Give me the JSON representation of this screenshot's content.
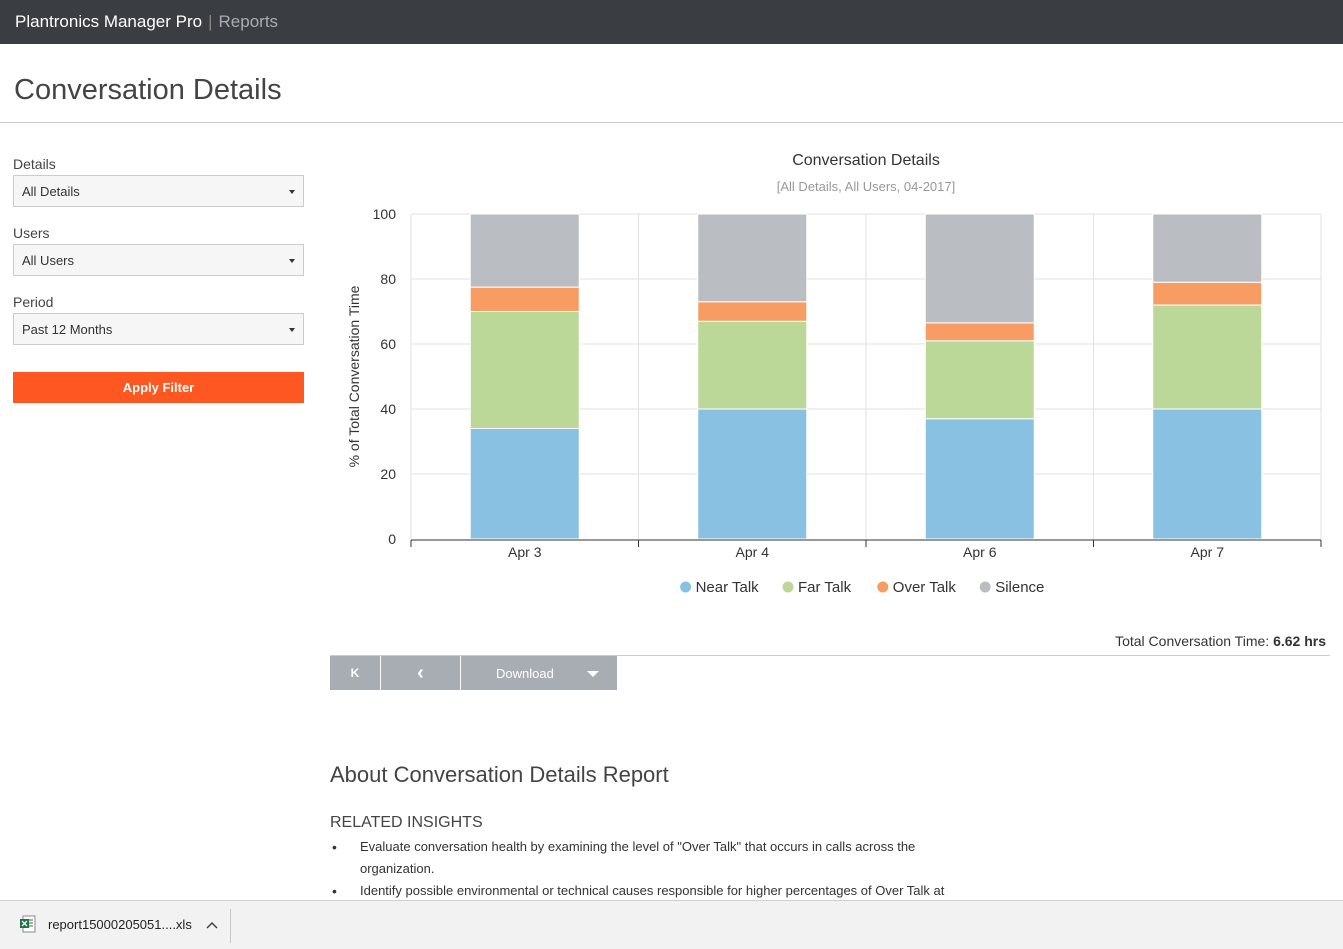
{
  "topbar": {
    "app_title": "Plantronics Manager Pro",
    "separator": "|",
    "section": "Reports"
  },
  "page": {
    "title": "Conversation Details"
  },
  "filters": {
    "details_label": "Details",
    "details_value": "All Details",
    "users_label": "Users",
    "users_value": "All Users",
    "period_label": "Period",
    "period_value": "Past 12 Months",
    "apply_label": "Apply Filter"
  },
  "chart_data": {
    "type": "bar",
    "stacked": true,
    "title": "Conversation Details",
    "subtitle": "[All Details, All Users, 04-2017]",
    "xlabel": "",
    "ylabel": "% of Total Conversation Time",
    "ylim": [
      0,
      100
    ],
    "yticks": [
      0,
      20,
      40,
      60,
      80,
      100
    ],
    "categories": [
      "Apr 3",
      "Apr 4",
      "Apr 6",
      "Apr 7"
    ],
    "series": [
      {
        "name": "Near Talk",
        "color": "#89c1e3",
        "values": [
          34,
          40,
          37,
          40
        ]
      },
      {
        "name": "Far Talk",
        "color": "#bcd898",
        "values": [
          36,
          27,
          24,
          32
        ]
      },
      {
        "name": "Over Talk",
        "color": "#f79c62",
        "values": [
          7.5,
          6,
          5.5,
          7
        ]
      },
      {
        "name": "Silence",
        "color": "#babec3",
        "values": [
          22.5,
          27,
          33.5,
          21
        ]
      }
    ],
    "legend": "bottom-center",
    "grid": true
  },
  "summary": {
    "total_label": "Total Conversation Time: ",
    "total_value": "6.62 hrs"
  },
  "pager": {
    "first": "K",
    "prev": "‹",
    "download": "Download"
  },
  "about": {
    "title": "About Conversation Details Report",
    "insights_title": "RELATED INSIGHTS",
    "insights": [
      "Evaluate conversation health by examining the level of \"Over Talk\" that occurs in calls across the organization.",
      "Identify possible environmental or technical causes responsible for higher percentages of Over Talk at"
    ]
  },
  "download_bar": {
    "file_name": "report15000205051....xls",
    "chevron": "^"
  }
}
